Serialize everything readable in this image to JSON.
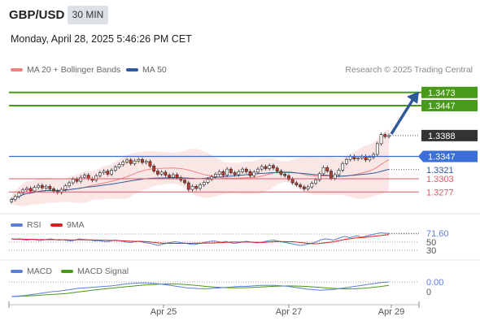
{
  "header": {
    "symbol": "GBP/USD",
    "timeframe": "30 MIN",
    "datetime": "Monday, April 28, 2025 5:46:26 PM CET"
  },
  "legend": {
    "ma20_label": "MA 20 + Bollinger Bands",
    "ma50_label": "MA 50",
    "research": "Research © 2025 Trading Central",
    "rsi_label": "RSI",
    "rsi_ma_label": "9MA",
    "macd_label": "MACD",
    "macd_signal_label": "MACD Signal"
  },
  "colors": {
    "ma20": "#f08080",
    "ma50": "#2e5a9c",
    "target": "#4a9a1a",
    "pivot": "#3a6fd8",
    "support": "#e05a6a",
    "price_box": "#333333",
    "arrow": "#2e5a9c",
    "bull_candle": "#1f7a3a",
    "bear_candle": "#c0392b",
    "bands": "#fbe3e3",
    "rsi": "#5b7fd6",
    "rsi_ma": "#d42020",
    "macd": "#5b7fd6",
    "macd_signal": "#4a9a1a"
  },
  "chart_data": {
    "type": "candlestick",
    "xlabels": [
      "Apr 25",
      "Apr 27",
      "Apr 29"
    ],
    "ylim": [
      1.3255,
      1.3495
    ],
    "close_series": [
      1.3262,
      1.3268,
      1.3275,
      1.3281,
      1.3284,
      1.3279,
      1.3286,
      1.329,
      1.3285,
      1.3288,
      1.3283,
      1.3279,
      1.3276,
      1.3282,
      1.3289,
      1.3295,
      1.3302,
      1.3298,
      1.3306,
      1.331,
      1.3303,
      1.33,
      1.3309,
      1.3315,
      1.3318,
      1.3312,
      1.332,
      1.3326,
      1.3331,
      1.3336,
      1.334,
      1.3333,
      1.3338,
      1.3341,
      1.3335,
      1.3337,
      1.3328,
      1.3318,
      1.3312,
      1.3316,
      1.331,
      1.3306,
      1.3311,
      1.3305,
      1.33,
      1.3295,
      1.3282,
      1.3288,
      1.3284,
      1.3291,
      1.3296,
      1.3302,
      1.3307,
      1.3312,
      1.3317,
      1.331,
      1.3322,
      1.3315,
      1.3311,
      1.3317,
      1.3322,
      1.3317,
      1.3309,
      1.3316,
      1.3322,
      1.3327,
      1.3323,
      1.3329,
      1.3324,
      1.3318,
      1.3312,
      1.3309,
      1.3302,
      1.3295,
      1.3291,
      1.3287,
      1.3283,
      1.3287,
      1.3294,
      1.3301,
      1.3313,
      1.3325,
      1.3318,
      1.3304,
      1.3311,
      1.332,
      1.3333,
      1.3341,
      1.3347,
      1.3342,
      1.3344,
      1.3347,
      1.334,
      1.3345,
      1.3351,
      1.3372,
      1.339,
      1.3386,
      1.3388
    ],
    "levels": {
      "resistance": [
        1.3473,
        1.3447
      ],
      "last": 1.3388,
      "pivot": 1.3347,
      "support": [
        1.3321,
        1.3303,
        1.3277
      ]
    },
    "rsi": {
      "value": 71.6,
      "ticks": [
        70,
        50,
        30
      ],
      "series": [
        58,
        57,
        58,
        56,
        55,
        57,
        56,
        54,
        55,
        57,
        58,
        56,
        55,
        56,
        54,
        53,
        55,
        58,
        57,
        56,
        55,
        53,
        54,
        52,
        51,
        53,
        55,
        54,
        52,
        50,
        49,
        51,
        52,
        50,
        48,
        47,
        44,
        42,
        45,
        47,
        49,
        51,
        50,
        48,
        47,
        45,
        44,
        46,
        48,
        50,
        52,
        53,
        51,
        50,
        52,
        49,
        47,
        48,
        50,
        52,
        51,
        49,
        48,
        50,
        52,
        54,
        55,
        53,
        51,
        49,
        47,
        45,
        43,
        42,
        44,
        46,
        48,
        52,
        56,
        58,
        57,
        55,
        58,
        62,
        64,
        61,
        63,
        66,
        62,
        64,
        67,
        69,
        71,
        73,
        72,
        71.6
      ]
    },
    "macd": {
      "value": 0.0,
      "ticks": [
        0
      ],
      "series": [
        -0.003,
        -0.0029,
        -0.0028,
        -0.0026,
        -0.0024,
        -0.0022,
        -0.002,
        -0.0019,
        -0.0017,
        -0.0015,
        -0.0013,
        -0.0012,
        -0.0011,
        -0.001,
        -0.0009,
        -0.0008,
        -0.0006,
        -0.0004,
        -0.0003,
        -0.0002,
        -0.0002,
        -0.0003,
        -0.0004,
        -0.0006,
        -0.0008,
        -0.001,
        -0.0012,
        -0.0013,
        -0.0014,
        -0.0014,
        -0.0013,
        -0.0012,
        -0.0011,
        -0.001,
        -0.0009,
        -0.0009,
        -0.0008,
        -0.0007,
        -0.0007,
        -0.0007,
        -0.0008,
        -0.0009,
        -0.0011,
        -0.0013,
        -0.0015,
        -0.0016,
        -0.0017,
        -0.0016,
        -0.0015,
        -0.0013,
        -0.0011,
        -0.0009,
        -0.0007,
        -0.0005,
        -0.0003,
        -0.0001,
        0.0
      ]
    }
  }
}
